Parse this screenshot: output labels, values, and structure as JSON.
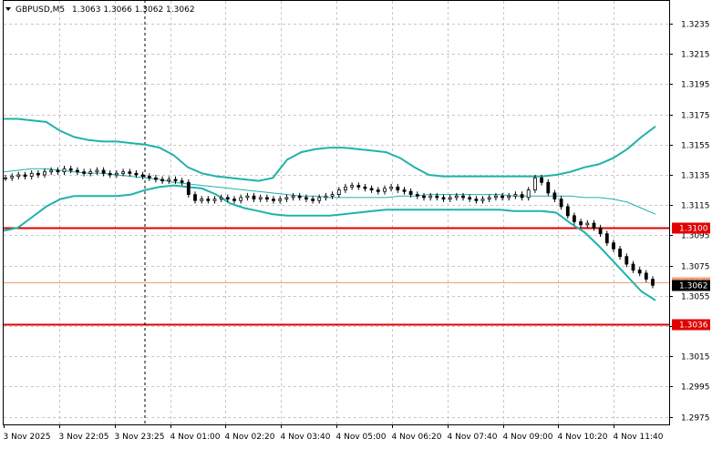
{
  "header": {
    "symbol_label": "GBPUSD,M5",
    "ohlc_label": "1.3063 1.3066 1.3062 1.3062",
    "expand_icon": "triangle-down-icon"
  },
  "colors": {
    "background": "#ffffff",
    "grid": "#c8c8c8",
    "candle": "#000000",
    "bollinger": "#20b2aa",
    "level_red": "#e00000",
    "level_orange": "#f0a070",
    "price_box": "#000000"
  },
  "chart_data": {
    "type": "candlestick",
    "title": "GBPUSD,M5",
    "ylim": [
      1.297,
      1.325
    ],
    "y_ticks": [
      "1.3235",
      "1.3215",
      "1.3195",
      "1.3175",
      "1.3155",
      "1.3135",
      "1.3115",
      "1.3095",
      "1.3075",
      "1.3055",
      "1.3035",
      "1.3015",
      "1.2995",
      "1.2975"
    ],
    "x_ticks": [
      "3 Nov 2025",
      "3 Nov 22:05",
      "3 Nov 23:25",
      "4 Nov 01:00",
      "4 Nov 02:20",
      "4 Nov 03:40",
      "4 Nov 05:00",
      "4 Nov 06:20",
      "4 Nov 07:40",
      "4 Nov 09:00",
      "4 Nov 10:20",
      "4 Nov 11:40"
    ],
    "levels": [
      {
        "label": "1.3100",
        "value": 1.31,
        "color": "#e00000"
      },
      {
        "label": "1.3036",
        "value": 1.3036,
        "color": "#e00000"
      },
      {
        "label": "1.3064",
        "value": 1.3064,
        "color": "#f0a070"
      }
    ],
    "current_price": {
      "label": "1.3062",
      "value": 1.3062
    },
    "close_series": [
      1.3133,
      1.3134,
      1.3135,
      1.3134,
      1.3136,
      1.3135,
      1.3137,
      1.3138,
      1.3137,
      1.3139,
      1.3138,
      1.3137,
      1.3136,
      1.3137,
      1.3138,
      1.3136,
      1.3135,
      1.3136,
      1.3137,
      1.3136,
      1.3135,
      1.3134,
      1.3133,
      1.3132,
      1.3131,
      1.3132,
      1.3131,
      1.313,
      1.3122,
      1.3118,
      1.3119,
      1.3118,
      1.3119,
      1.312,
      1.3119,
      1.3118,
      1.312,
      1.3121,
      1.3119,
      1.312,
      1.3119,
      1.3118,
      1.3119,
      1.312,
      1.3121,
      1.312,
      1.3119,
      1.3118,
      1.312,
      1.3121,
      1.3122,
      1.3125,
      1.3127,
      1.3128,
      1.3127,
      1.3126,
      1.3125,
      1.3124,
      1.3126,
      1.3127,
      1.3125,
      1.3124,
      1.3122,
      1.3121,
      1.312,
      1.3121,
      1.312,
      1.3119,
      1.312,
      1.3121,
      1.312,
      1.3119,
      1.3118,
      1.3119,
      1.312,
      1.3121,
      1.312,
      1.3121,
      1.3122,
      1.312,
      1.3125,
      1.3133,
      1.313,
      1.3123,
      1.3119,
      1.3114,
      1.3108,
      1.3104,
      1.3102,
      1.3103,
      1.31,
      1.3096,
      1.309,
      1.3086,
      1.3081,
      1.3076,
      1.3072,
      1.307,
      1.3066,
      1.3062
    ],
    "bollinger_upper": [
      1.3172,
      1.3172,
      1.3171,
      1.317,
      1.3164,
      1.316,
      1.3158,
      1.3157,
      1.3157,
      1.3156,
      1.3155,
      1.3153,
      1.3148,
      1.314,
      1.3136,
      1.3134,
      1.3133,
      1.3132,
      1.3131,
      1.3133,
      1.3145,
      1.315,
      1.3152,
      1.3153,
      1.3153,
      1.3152,
      1.3151,
      1.315,
      1.3146,
      1.314,
      1.3135,
      1.3134,
      1.3134,
      1.3134,
      1.3134,
      1.3134,
      1.3134,
      1.3134,
      1.3134,
      1.3135,
      1.3137,
      1.314,
      1.3142,
      1.3146,
      1.3152,
      1.316,
      1.3167
    ],
    "bollinger_middle": [
      1.3137,
      1.3138,
      1.3139,
      1.3139,
      1.3138,
      1.3137,
      1.3136,
      1.3136,
      1.3135,
      1.3134,
      1.3133,
      1.3132,
      1.313,
      1.3129,
      1.3128,
      1.3127,
      1.3126,
      1.3125,
      1.3124,
      1.3123,
      1.3122,
      1.3121,
      1.3121,
      1.312,
      1.312,
      1.312,
      1.312,
      1.312,
      1.3121,
      1.3121,
      1.3122,
      1.3122,
      1.3122,
      1.3122,
      1.3122,
      1.3122,
      1.3121,
      1.3121,
      1.3121,
      1.3121,
      1.3121,
      1.312,
      1.312,
      1.3119,
      1.3117,
      1.3113,
      1.3109
    ],
    "bollinger_lower": [
      1.3098,
      1.31,
      1.3107,
      1.3114,
      1.3119,
      1.3121,
      1.3121,
      1.3121,
      1.3121,
      1.3122,
      1.3125,
      1.3127,
      1.3128,
      1.3127,
      1.3126,
      1.3122,
      1.3116,
      1.3113,
      1.3111,
      1.3109,
      1.3108,
      1.3108,
      1.3108,
      1.3108,
      1.3109,
      1.311,
      1.3111,
      1.3112,
      1.3112,
      1.3112,
      1.3112,
      1.3112,
      1.3112,
      1.3112,
      1.3112,
      1.3112,
      1.3111,
      1.3111,
      1.3111,
      1.311,
      1.3103,
      1.3097,
      1.3088,
      1.3078,
      1.3068,
      1.3058,
      1.3052
    ]
  }
}
